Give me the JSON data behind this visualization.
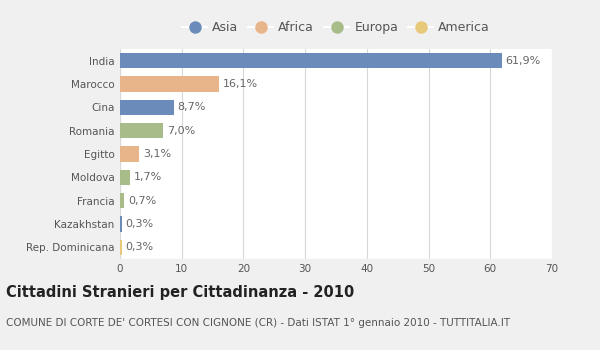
{
  "countries": [
    "India",
    "Marocco",
    "Cina",
    "Romania",
    "Egitto",
    "Moldova",
    "Francia",
    "Kazakhstan",
    "Rep. Dominicana"
  ],
  "values": [
    61.9,
    16.1,
    8.7,
    7.0,
    3.1,
    1.7,
    0.7,
    0.3,
    0.3
  ],
  "labels": [
    "61,9%",
    "16,1%",
    "8,7%",
    "7,0%",
    "3,1%",
    "1,7%",
    "0,7%",
    "0,3%",
    "0,3%"
  ],
  "colors": [
    "#6b8cba",
    "#e8b48a",
    "#6b8cba",
    "#a8bc8a",
    "#e8b48a",
    "#a8bc8a",
    "#a8bc8a",
    "#6b8cba",
    "#e8c87a"
  ],
  "legend_labels": [
    "Asia",
    "Africa",
    "Europa",
    "America"
  ],
  "legend_colors": [
    "#6b8cba",
    "#e8b48a",
    "#a8bc8a",
    "#e8c87a"
  ],
  "title": "Cittadini Stranieri per Cittadinanza - 2010",
  "subtitle": "COMUNE DI CORTE DE' CORTESI CON CIGNONE (CR) - Dati ISTAT 1° gennaio 2010 - TUTTITALIA.IT",
  "xlim": [
    0,
    70
  ],
  "xticks": [
    0,
    10,
    20,
    30,
    40,
    50,
    60,
    70
  ],
  "background_color": "#f0f0f0",
  "plot_bg_color": "#ffffff",
  "grid_color": "#d8d8d8",
  "title_fontsize": 10.5,
  "subtitle_fontsize": 7.5,
  "label_fontsize": 8,
  "tick_fontsize": 7.5,
  "legend_fontsize": 9
}
